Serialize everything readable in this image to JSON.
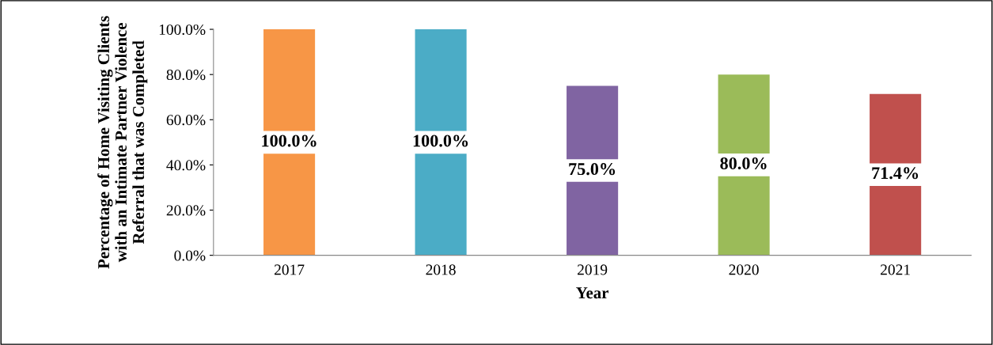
{
  "chart_data": {
    "type": "bar",
    "xlabel": "Year",
    "ylabel": "Percentage of Home Visiting Clients with an Intimate Partner Violence Referral that was Completed",
    "categories": [
      "2017",
      "2018",
      "2019",
      "2020",
      "2021"
    ],
    "values": [
      100.0,
      100.0,
      75.0,
      80.0,
      71.4
    ],
    "colors": [
      "#f79646",
      "#4bacc6",
      "#8064a2",
      "#9bbb59",
      "#c0504d"
    ],
    "value_labels": [
      "100.0%",
      "100.0%",
      "75.0%",
      "80.0%",
      "71.4%"
    ],
    "ylim": [
      0,
      100
    ],
    "yticks": [
      {
        "value": 0,
        "label": "0.0%"
      },
      {
        "value": 20,
        "label": "20.0%"
      },
      {
        "value": 40,
        "label": "40.0%"
      },
      {
        "value": 60,
        "label": "60.0%"
      },
      {
        "value": 80,
        "label": "80.0%"
      },
      {
        "value": 100,
        "label": "100.0%"
      }
    ],
    "grid": false,
    "legend": false
  }
}
